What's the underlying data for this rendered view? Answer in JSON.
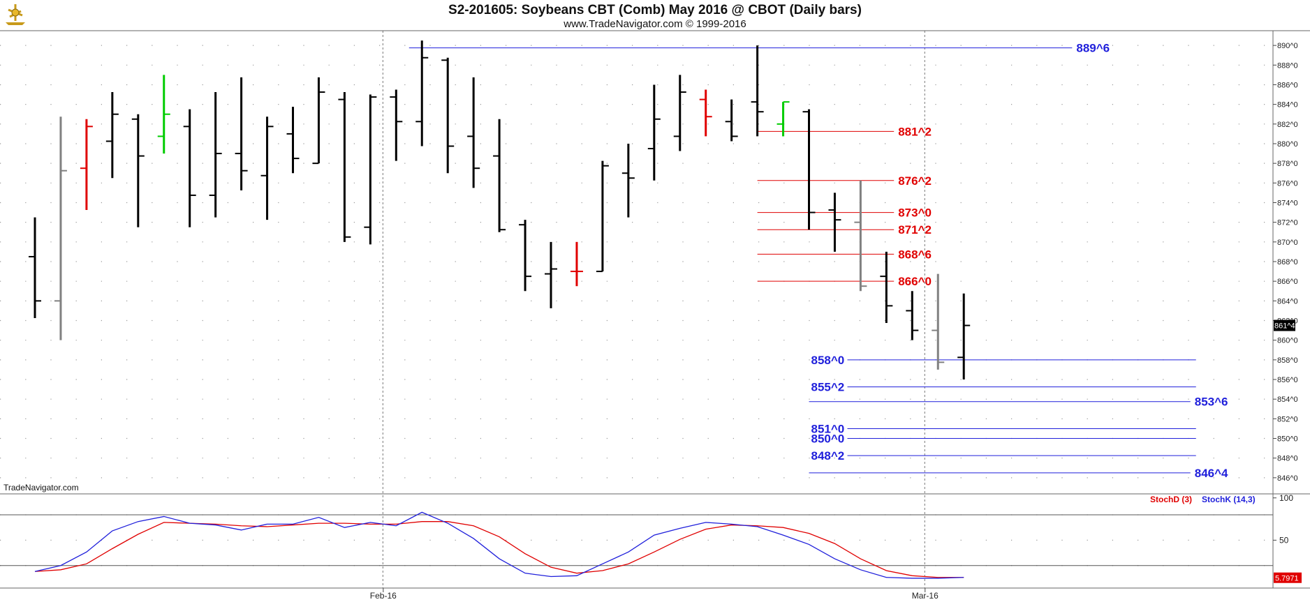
{
  "header": {
    "title": "S2-201605:  Soybeans CBT (Comb) May 2016 @ CBOT  (Daily bars)",
    "subtitle": "www.TradeNavigator.com © 1999-2016",
    "watermark": "TradeNavigator.com"
  },
  "colors": {
    "bar_black": "#000000",
    "bar_gray": "#808080",
    "bar_red": "#e00000",
    "bar_green": "#00cc00",
    "support": "#1f1fdb",
    "resistance": "#e00000",
    "stochD": "#e00000",
    "stochK": "#1f1fdb"
  },
  "chart_data": [
    {
      "type": "ohlc",
      "name": "price",
      "ylim": [
        844.5,
        891.5
      ],
      "yticks": [
        "890^0",
        "888^0",
        "886^0",
        "884^0",
        "882^0",
        "880^0",
        "878^0",
        "876^0",
        "874^0",
        "872^0",
        "870^0",
        "868^0",
        "866^0",
        "864^0",
        "862^0",
        "860^0",
        "858^0",
        "856^0",
        "854^0",
        "852^0",
        "850^0",
        "848^0",
        "846^0"
      ],
      "ytick_values": [
        890,
        888,
        886,
        884,
        882,
        880,
        878,
        876,
        874,
        872,
        870,
        868,
        866,
        864,
        862,
        860,
        858,
        856,
        854,
        852,
        850,
        848,
        846
      ],
      "x_labels": [
        {
          "label": "Feb-16",
          "bar": 13.5
        },
        {
          "label": "Mar-16",
          "bar": 34.5
        }
      ],
      "last_price_label": "861^4",
      "last_price": 861.5,
      "bars": [
        {
          "o": 868.5,
          "h": 872.5,
          "l": 862.25,
          "c": 864,
          "color": "black"
        },
        {
          "o": 864,
          "h": 882.75,
          "l": 860,
          "c": 877.25,
          "color": "gray"
        },
        {
          "o": 877.5,
          "h": 882.5,
          "l": 873.25,
          "c": 881.75,
          "color": "red"
        },
        {
          "o": 880.25,
          "h": 885.25,
          "l": 876.5,
          "c": 883,
          "color": "black"
        },
        {
          "o": 882.5,
          "h": 883,
          "l": 871.5,
          "c": 878.75,
          "color": "black"
        },
        {
          "o": 880.75,
          "h": 887,
          "l": 879,
          "c": 883,
          "color": "green"
        },
        {
          "o": 881.75,
          "h": 883.5,
          "l": 871.5,
          "c": 874.75,
          "color": "black"
        },
        {
          "o": 874.75,
          "h": 885.25,
          "l": 872.5,
          "c": 879,
          "color": "black"
        },
        {
          "o": 879,
          "h": 886.75,
          "l": 875.25,
          "c": 877.25,
          "color": "black"
        },
        {
          "o": 876.75,
          "h": 882.75,
          "l": 872.25,
          "c": 881.75,
          "color": "black"
        },
        {
          "o": 881,
          "h": 883.75,
          "l": 877,
          "c": 878.5,
          "color": "black"
        },
        {
          "o": 878,
          "h": 886.75,
          "l": 878,
          "c": 885.25,
          "color": "black"
        },
        {
          "o": 884.5,
          "h": 885.25,
          "l": 870,
          "c": 870.5,
          "color": "black"
        },
        {
          "o": 871.5,
          "h": 885,
          "l": 869.75,
          "c": 884.75,
          "color": "black"
        },
        {
          "o": 884.75,
          "h": 885.5,
          "l": 878.25,
          "c": 882.25,
          "color": "black"
        },
        {
          "o": 882.25,
          "h": 890.5,
          "l": 879.75,
          "c": 888.75,
          "color": "black"
        },
        {
          "o": 888.5,
          "h": 888.75,
          "l": 877,
          "c": 879.75,
          "color": "black"
        },
        {
          "o": 880.75,
          "h": 886.75,
          "l": 875.5,
          "c": 877.5,
          "color": "black"
        },
        {
          "o": 878.75,
          "h": 882.5,
          "l": 871,
          "c": 871.25,
          "color": "black"
        },
        {
          "o": 871.75,
          "h": 872.25,
          "l": 865,
          "c": 866.5,
          "color": "black"
        },
        {
          "o": 866.75,
          "h": 870,
          "l": 863.25,
          "c": 867.25,
          "color": "black"
        },
        {
          "o": 867,
          "h": 870,
          "l": 865.5,
          "c": 867,
          "color": "red"
        },
        {
          "o": 867,
          "h": 878.25,
          "l": 867,
          "c": 877.75,
          "color": "black"
        },
        {
          "o": 877,
          "h": 880,
          "l": 872.5,
          "c": 876.5,
          "color": "black"
        },
        {
          "o": 879.5,
          "h": 886,
          "l": 876.25,
          "c": 882.5,
          "color": "black"
        },
        {
          "o": 880.75,
          "h": 887,
          "l": 879.25,
          "c": 885.25,
          "color": "black"
        },
        {
          "o": 884.5,
          "h": 885.5,
          "l": 880.75,
          "c": 882.75,
          "color": "red"
        },
        {
          "o": 882.25,
          "h": 884.5,
          "l": 880.25,
          "c": 880.75,
          "color": "black"
        },
        {
          "o": 884.25,
          "h": 890,
          "l": 880.75,
          "c": 883.25,
          "color": "black"
        },
        {
          "o": 882,
          "h": 884.25,
          "l": 880.75,
          "c": 884.25,
          "color": "green"
        },
        {
          "o": 883.25,
          "h": 883.5,
          "l": 871.25,
          "c": 873,
          "color": "black"
        },
        {
          "o": 873.25,
          "h": 875,
          "l": 869,
          "c": 872.25,
          "color": "black"
        },
        {
          "o": 872,
          "h": 876.25,
          "l": 865,
          "c": 865.5,
          "color": "gray"
        },
        {
          "o": 866.5,
          "h": 869,
          "l": 861.75,
          "c": 863.5,
          "color": "black"
        },
        {
          "o": 863,
          "h": 865,
          "l": 860,
          "c": 861,
          "color": "black"
        },
        {
          "o": 861,
          "h": 866.75,
          "l": 857,
          "c": 857.75,
          "color": "gray"
        },
        {
          "o": 858.25,
          "h": 864.75,
          "l": 856,
          "c": 861.5,
          "color": "black"
        }
      ],
      "levels": [
        {
          "label": "889^6",
          "value": 889.75,
          "kind": "blue",
          "from_bar": 14.5,
          "to_bar": 42.5,
          "label_side": "right"
        },
        {
          "label": "881^2",
          "value": 881.25,
          "kind": "red",
          "from_bar": 28,
          "to_bar": 36,
          "label_side": "right"
        },
        {
          "label": "876^2",
          "value": 876.25,
          "kind": "red",
          "from_bar": 28,
          "to_bar": 36,
          "label_side": "right"
        },
        {
          "label": "873^0",
          "value": 873,
          "kind": "red",
          "from_bar": 28,
          "to_bar": 36,
          "label_side": "right"
        },
        {
          "label": "871^2",
          "value": 871.25,
          "kind": "red",
          "from_bar": 28,
          "to_bar": 36,
          "label_side": "right"
        },
        {
          "label": "868^6",
          "value": 868.75,
          "kind": "red",
          "from_bar": 28,
          "to_bar": 36,
          "label_side": "right"
        },
        {
          "label": "866^0",
          "value": 866,
          "kind": "red",
          "from_bar": 28,
          "to_bar": 36,
          "label_side": "right"
        },
        {
          "label": "858^0",
          "value": 858,
          "kind": "blue",
          "from_bar": 30,
          "to_bar": 45,
          "label_side": "left"
        },
        {
          "label": "855^2",
          "value": 855.25,
          "kind": "blue",
          "from_bar": 30,
          "to_bar": 45,
          "label_side": "left"
        },
        {
          "label": "853^6",
          "value": 853.75,
          "kind": "blue",
          "from_bar": 30,
          "to_bar": 45,
          "label_side": "right"
        },
        {
          "label": "851^0",
          "value": 851,
          "kind": "blue",
          "from_bar": 30,
          "to_bar": 45,
          "label_side": "left"
        },
        {
          "label": "850^0",
          "value": 850,
          "kind": "blue",
          "from_bar": 30,
          "to_bar": 45,
          "label_side": "left"
        },
        {
          "label": "848^2",
          "value": 848.25,
          "kind": "blue",
          "from_bar": 30,
          "to_bar": 45,
          "label_side": "left"
        },
        {
          "label": "846^4",
          "value": 846.5,
          "kind": "blue",
          "from_bar": 30,
          "to_bar": 45,
          "label_side": "right"
        }
      ]
    },
    {
      "type": "line",
      "name": "stochastic",
      "ylim": [
        0,
        100
      ],
      "yticks": [
        "100",
        "50"
      ],
      "ytick_values": [
        100,
        50
      ],
      "reference_levels": [
        80,
        20
      ],
      "last_value_label": "5.7971",
      "legend": [
        {
          "label": "StochD (3)",
          "color": "#e00000"
        },
        {
          "label": "StochK (14,3)",
          "color": "#1f1fdb"
        }
      ],
      "series": [
        {
          "name": "StochD (3)",
          "values": [
            13,
            15,
            22,
            40,
            57,
            71,
            70,
            69,
            67,
            66,
            68,
            70,
            70,
            69,
            69,
            72,
            72,
            67,
            54,
            34,
            18,
            11,
            14,
            22,
            36,
            51,
            63,
            68,
            67,
            65,
            58,
            46,
            28,
            14,
            8,
            6,
            6
          ]
        },
        {
          "name": "StochK (14,3)",
          "values": [
            13,
            20,
            36,
            61,
            72,
            78,
            70,
            68,
            62,
            69,
            69,
            77,
            65,
            71,
            67,
            83,
            70,
            52,
            28,
            11,
            7,
            8,
            22,
            36,
            56,
            64,
            71,
            69,
            66,
            56,
            45,
            28,
            15,
            6,
            5,
            5,
            6
          ]
        }
      ]
    }
  ]
}
